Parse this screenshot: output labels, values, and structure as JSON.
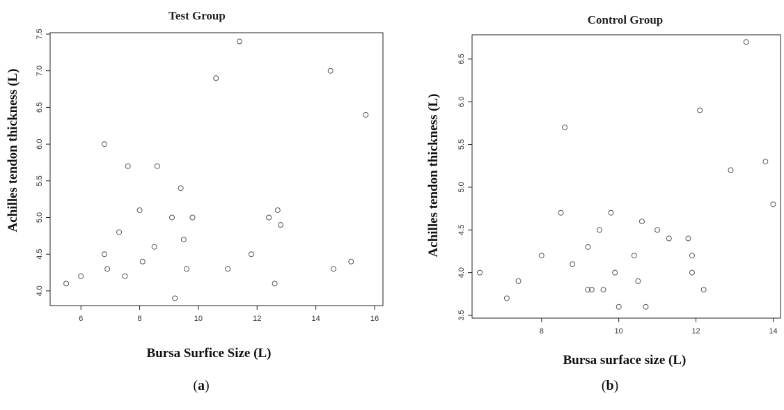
{
  "chart_data": [
    {
      "type": "scatter",
      "panel": "a",
      "title": "Test Group",
      "xlabel": "Bursa Surfice Size  (L)",
      "ylabel": "Achilles tendon thickness (L)",
      "xlim": [
        5.0,
        16.0
      ],
      "ylim": [
        3.8,
        7.5
      ],
      "x_ticks": [
        "6",
        "8",
        "10",
        "12",
        "14",
        "16"
      ],
      "y_ticks": [
        "4.0",
        "4.5",
        "5.0",
        "5.5",
        "6.0",
        "6.5",
        "7.0",
        "7.5"
      ],
      "grid": false,
      "points": [
        {
          "x": 5.5,
          "y": 4.1
        },
        {
          "x": 6.0,
          "y": 4.2
        },
        {
          "x": 6.8,
          "y": 6.0
        },
        {
          "x": 6.8,
          "y": 4.5
        },
        {
          "x": 6.9,
          "y": 4.3
        },
        {
          "x": 7.3,
          "y": 4.8
        },
        {
          "x": 7.5,
          "y": 4.2
        },
        {
          "x": 7.6,
          "y": 5.7
        },
        {
          "x": 8.0,
          "y": 5.1
        },
        {
          "x": 8.1,
          "y": 4.4
        },
        {
          "x": 8.5,
          "y": 4.6
        },
        {
          "x": 8.6,
          "y": 5.7
        },
        {
          "x": 9.1,
          "y": 5.0
        },
        {
          "x": 9.2,
          "y": 3.9
        },
        {
          "x": 9.4,
          "y": 5.4
        },
        {
          "x": 9.5,
          "y": 4.7
        },
        {
          "x": 9.6,
          "y": 4.3
        },
        {
          "x": 9.8,
          "y": 5.0
        },
        {
          "x": 10.6,
          "y": 6.9
        },
        {
          "x": 11.0,
          "y": 4.3
        },
        {
          "x": 11.4,
          "y": 7.4
        },
        {
          "x": 11.8,
          "y": 4.5
        },
        {
          "x": 12.4,
          "y": 5.0
        },
        {
          "x": 12.6,
          "y": 4.1
        },
        {
          "x": 12.7,
          "y": 5.1
        },
        {
          "x": 12.8,
          "y": 4.9
        },
        {
          "x": 14.5,
          "y": 7.0
        },
        {
          "x": 14.6,
          "y": 4.3
        },
        {
          "x": 15.2,
          "y": 4.4
        },
        {
          "x": 15.7,
          "y": 6.4
        }
      ]
    },
    {
      "type": "scatter",
      "panel": "b",
      "title": "Control Group",
      "xlabel": "Bursa surface size (L)",
      "ylabel": "Achilles tendon thickness (L)",
      "xlim": [
        6.2,
        14.1
      ],
      "ylim": [
        3.5,
        6.8
      ],
      "x_ticks": [
        "8",
        "10",
        "12",
        "14"
      ],
      "y_ticks": [
        "3.5",
        "4.0",
        "4.5",
        "5.0",
        "5.5",
        "6.0",
        "6.5"
      ],
      "grid": false,
      "points": [
        {
          "x": 6.4,
          "y": 4.0
        },
        {
          "x": 7.1,
          "y": 3.7
        },
        {
          "x": 7.4,
          "y": 3.9
        },
        {
          "x": 8.0,
          "y": 4.2
        },
        {
          "x": 8.5,
          "y": 4.7
        },
        {
          "x": 8.6,
          "y": 5.7
        },
        {
          "x": 8.8,
          "y": 4.1
        },
        {
          "x": 9.2,
          "y": 4.3
        },
        {
          "x": 9.2,
          "y": 3.8
        },
        {
          "x": 9.3,
          "y": 3.8
        },
        {
          "x": 9.5,
          "y": 4.5
        },
        {
          "x": 9.6,
          "y": 3.8
        },
        {
          "x": 9.8,
          "y": 4.7
        },
        {
          "x": 9.9,
          "y": 4.0
        },
        {
          "x": 10.0,
          "y": 3.6
        },
        {
          "x": 10.4,
          "y": 4.2
        },
        {
          "x": 10.5,
          "y": 3.9
        },
        {
          "x": 10.6,
          "y": 4.6
        },
        {
          "x": 10.7,
          "y": 3.6
        },
        {
          "x": 11.0,
          "y": 4.5
        },
        {
          "x": 11.3,
          "y": 4.4
        },
        {
          "x": 11.8,
          "y": 4.4
        },
        {
          "x": 11.9,
          "y": 4.2
        },
        {
          "x": 11.9,
          "y": 4.0
        },
        {
          "x": 12.1,
          "y": 5.9
        },
        {
          "x": 12.2,
          "y": 3.8
        },
        {
          "x": 12.9,
          "y": 5.2
        },
        {
          "x": 13.3,
          "y": 6.7
        },
        {
          "x": 13.8,
          "y": 5.3
        },
        {
          "x": 14.0,
          "y": 4.8
        }
      ]
    }
  ],
  "captions": {
    "a": "(a)",
    "b": "(b)"
  }
}
